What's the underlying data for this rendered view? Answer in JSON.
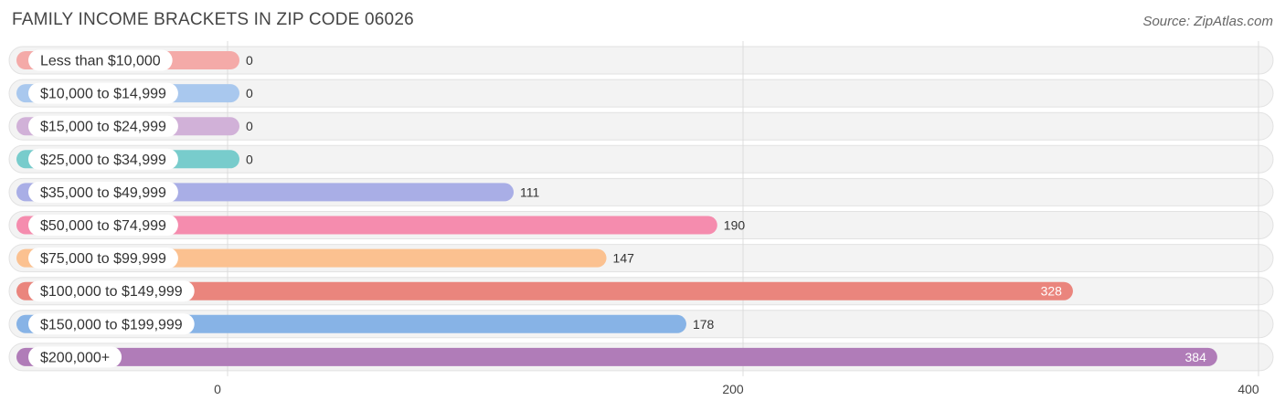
{
  "header": {
    "title": "FAMILY INCOME BRACKETS IN ZIP CODE 06026",
    "source": "Source: ZipAtlas.com"
  },
  "chart_data": {
    "type": "bar",
    "orientation": "horizontal",
    "title": "FAMILY INCOME BRACKETS IN ZIP CODE 06026",
    "xlabel": "",
    "ylabel": "",
    "categories": [
      "Less than $10,000",
      "$10,000 to $14,999",
      "$15,000 to $24,999",
      "$25,000 to $34,999",
      "$35,000 to $49,999",
      "$50,000 to $74,999",
      "$75,000 to $99,999",
      "$100,000 to $149,999",
      "$150,000 to $199,999",
      "$200,000+"
    ],
    "values": [
      0,
      0,
      0,
      0,
      111,
      190,
      147,
      328,
      178,
      384
    ],
    "value_labels": [
      "0",
      "0",
      "0",
      "0",
      "111",
      "190",
      "147",
      "328",
      "178",
      "384"
    ],
    "colors": [
      "#f4aaa8",
      "#a9c8ee",
      "#d1b1d8",
      "#78cccc",
      "#a9aee6",
      "#f58cae",
      "#fbc190",
      "#ea857d",
      "#87b3e6",
      "#b07cb8"
    ],
    "xlim": [
      0,
      400
    ],
    "x_ticks": [
      0,
      200,
      400
    ],
    "x_tick_labels": [
      "0",
      "200",
      "400"
    ],
    "grid": true,
    "legend": "none"
  }
}
